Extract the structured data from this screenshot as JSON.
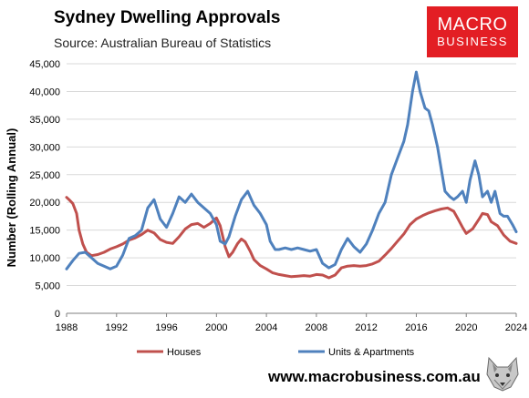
{
  "header": {
    "title": "Sydney Dwelling Approvals",
    "subtitle": "Source: Australian Bureau of Statistics"
  },
  "logo": {
    "line1": "MACRO",
    "line2": "BUSINESS",
    "color": "#e31e24"
  },
  "footer": {
    "url": "www.macrobusiness.com.au",
    "mascot_icon": "wolf-head-icon"
  },
  "chart_data": {
    "type": "line",
    "ylabel": "Number (Rolling Annual)",
    "ylim": [
      0,
      45000
    ],
    "xlim": [
      1988,
      2024
    ],
    "yticks": [
      0,
      5000,
      10000,
      15000,
      20000,
      25000,
      30000,
      35000,
      40000,
      45000
    ],
    "ytick_labels": [
      "0",
      "5,000",
      "10,000",
      "15,000",
      "20,000",
      "25,000",
      "30,000",
      "35,000",
      "40,000",
      "45,000"
    ],
    "xticks": [
      1988,
      1992,
      1996,
      2000,
      2004,
      2008,
      2012,
      2016,
      2020,
      2024
    ],
    "xtick_labels": [
      "1988",
      "1992",
      "1996",
      "2000",
      "2004",
      "2008",
      "2012",
      "2016",
      "2020",
      "2024"
    ],
    "grid": "horizontal",
    "legend": "bottom",
    "series": [
      {
        "name": "Houses",
        "color": "#c0504d",
        "x": [
          1988.0,
          1988.2,
          1988.5,
          1988.8,
          1989.0,
          1989.3,
          1989.6,
          1990.0,
          1990.5,
          1991.0,
          1991.5,
          1992.0,
          1992.5,
          1993.0,
          1993.5,
          1994.0,
          1994.5,
          1995.0,
          1995.5,
          1996.0,
          1996.5,
          1997.0,
          1997.5,
          1998.0,
          1998.5,
          1999.0,
          1999.5,
          2000.0,
          2000.3,
          2000.7,
          2001.0,
          2001.3,
          2001.7,
          2002.0,
          2002.3,
          2002.7,
          2003.0,
          2003.5,
          2004.0,
          2004.5,
          2005.0,
          2005.5,
          2006.0,
          2006.5,
          2007.0,
          2007.5,
          2008.0,
          2008.5,
          2009.0,
          2009.5,
          2010.0,
          2010.5,
          2011.0,
          2011.5,
          2012.0,
          2012.5,
          2013.0,
          2013.5,
          2014.0,
          2014.5,
          2015.0,
          2015.5,
          2016.0,
          2016.5,
          2017.0,
          2017.5,
          2018.0,
          2018.5,
          2019.0,
          2019.3,
          2019.7,
          2020.0,
          2020.5,
          2021.0,
          2021.3,
          2021.7,
          2022.0,
          2022.5,
          2023.0,
          2023.5,
          2024.0
        ],
        "y": [
          20900,
          20500,
          19800,
          18000,
          15000,
          12500,
          11000,
          10400,
          10600,
          11000,
          11600,
          12000,
          12500,
          13200,
          13600,
          14200,
          15000,
          14500,
          13300,
          12800,
          12600,
          13800,
          15200,
          16000,
          16200,
          15500,
          16200,
          17200,
          15800,
          12000,
          10200,
          11000,
          12600,
          13400,
          12900,
          11200,
          9700,
          8600,
          8000,
          7300,
          7000,
          6800,
          6600,
          6700,
          6800,
          6700,
          7000,
          6900,
          6400,
          6900,
          8200,
          8500,
          8600,
          8500,
          8600,
          8900,
          9400,
          10500,
          11700,
          13000,
          14300,
          16000,
          17000,
          17600,
          18100,
          18500,
          18800,
          19000,
          18400,
          17200,
          15500,
          14400,
          15200,
          16900,
          18000,
          17800,
          16500,
          15800,
          14100,
          13000,
          12600
        ]
      },
      {
        "name": "Units & Apartments",
        "color": "#4f81bd",
        "x": [
          1988.0,
          1988.5,
          1989.0,
          1989.5,
          1990.0,
          1990.5,
          1991.0,
          1991.5,
          1992.0,
          1992.5,
          1993.0,
          1993.5,
          1994.0,
          1994.5,
          1995.0,
          1995.5,
          1996.0,
          1996.5,
          1997.0,
          1997.5,
          1998.0,
          1998.5,
          1999.0,
          1999.5,
          2000.0,
          2000.3,
          2000.7,
          2001.0,
          2001.5,
          2002.0,
          2002.5,
          2003.0,
          2003.5,
          2004.0,
          2004.3,
          2004.7,
          2005.0,
          2005.5,
          2006.0,
          2006.5,
          2007.0,
          2007.5,
          2008.0,
          2008.5,
          2009.0,
          2009.5,
          2010.0,
          2010.5,
          2011.0,
          2011.5,
          2012.0,
          2012.5,
          2013.0,
          2013.5,
          2014.0,
          2014.5,
          2015.0,
          2015.3,
          2015.7,
          2016.0,
          2016.3,
          2016.7,
          2017.0,
          2017.3,
          2017.7,
          2018.0,
          2018.3,
          2018.7,
          2019.0,
          2019.3,
          2019.7,
          2020.0,
          2020.3,
          2020.7,
          2021.0,
          2021.3,
          2021.7,
          2022.0,
          2022.3,
          2022.7,
          2023.0,
          2023.3,
          2023.7,
          2024.0
        ],
        "y": [
          8000,
          9500,
          10800,
          11000,
          10000,
          9000,
          8500,
          8000,
          8500,
          10500,
          13500,
          14000,
          15000,
          19000,
          20500,
          17000,
          15500,
          18000,
          21000,
          20000,
          21500,
          20000,
          19000,
          18000,
          16000,
          13000,
          12500,
          13800,
          17500,
          20500,
          22000,
          19500,
          18000,
          16000,
          13000,
          11500,
          11500,
          11800,
          11500,
          11800,
          11500,
          11200,
          11500,
          9000,
          8200,
          8800,
          11500,
          13500,
          12000,
          11000,
          12500,
          15000,
          18000,
          20000,
          25000,
          28000,
          31000,
          34000,
          40000,
          43500,
          40000,
          37000,
          36500,
          34000,
          30000,
          26000,
          22000,
          21000,
          20500,
          21000,
          22000,
          20000,
          24000,
          27500,
          25000,
          21000,
          22000,
          20000,
          22000,
          18000,
          17500,
          17500,
          16000,
          14700
        ]
      }
    ]
  }
}
